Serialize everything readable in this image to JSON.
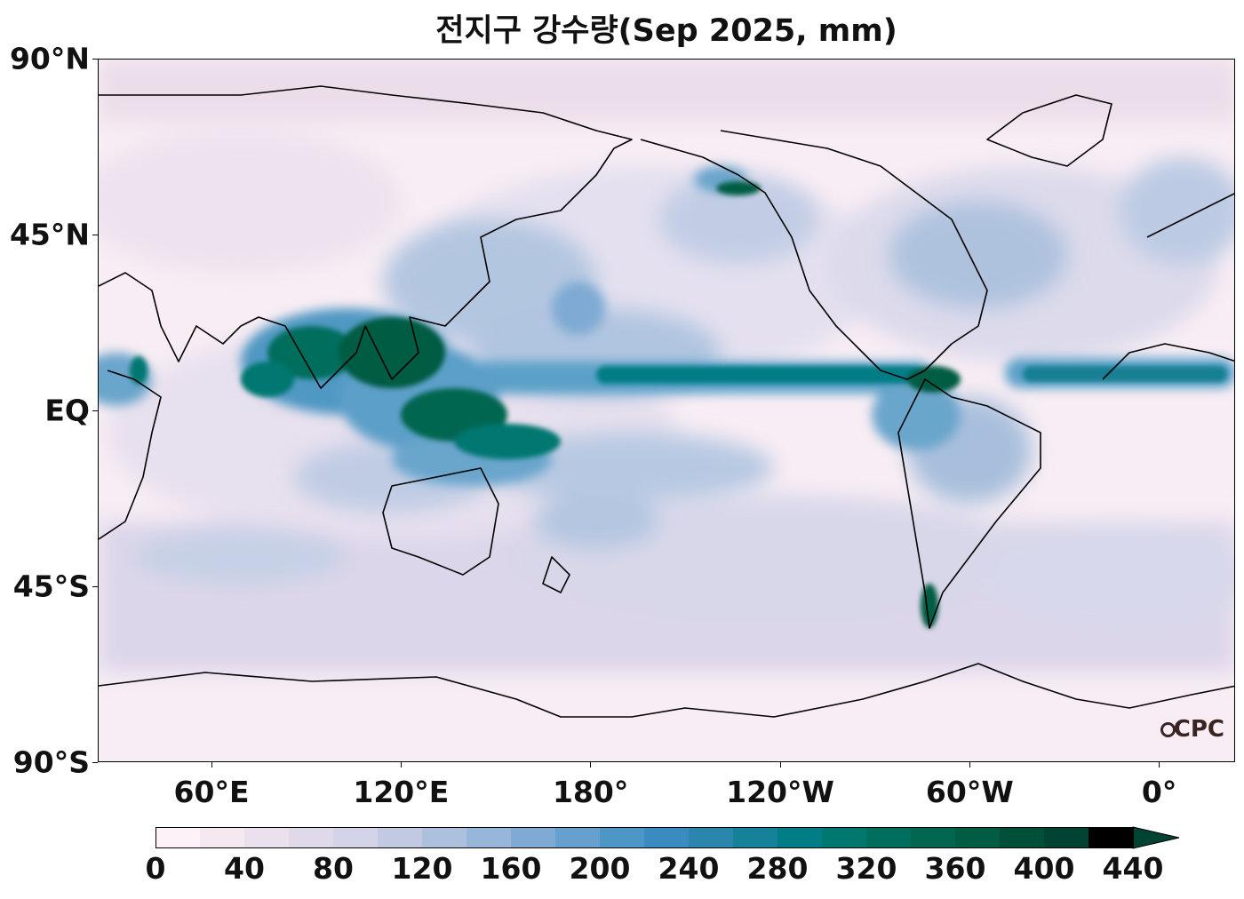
{
  "title": "전지구 강수량(Sep 2025, mm)",
  "logo_text": "CPC",
  "y_axis": {
    "ticks": [
      {
        "label": "90°N",
        "lat": 90
      },
      {
        "label": "45°N",
        "lat": 45
      },
      {
        "label": "EQ",
        "lat": 0
      },
      {
        "label": "45°S",
        "lat": -45
      },
      {
        "label": "90°S",
        "lat": -90
      }
    ]
  },
  "x_axis": {
    "ticks": [
      {
        "label": "60°E",
        "lon": 60
      },
      {
        "label": "120°E",
        "lon": 120
      },
      {
        "label": "180°",
        "lon": 180
      },
      {
        "label": "120°W",
        "lon": 240
      },
      {
        "label": "60°W",
        "lon": 300
      },
      {
        "label": "0°",
        "lon": 360
      }
    ]
  },
  "colorbar": {
    "min": 0,
    "max": 440,
    "step": 20,
    "extend": "max",
    "tick_labels": [
      "0",
      "40",
      "80",
      "120",
      "160",
      "200",
      "240",
      "280",
      "320",
      "360",
      "400",
      "440"
    ],
    "colors": [
      "#fdf2f7",
      "#f5e8f1",
      "#ebe0ee",
      "#dfd9ea",
      "#d3d4e7",
      "#c2cae3",
      "#adc0de",
      "#97b6da",
      "#80aad4",
      "#66a0ce",
      "#4d97c6",
      "#3a8bbf",
      "#2a86ad",
      "#168299",
      "#007d85",
      "#00776f",
      "#006e5d",
      "#00664f",
      "#005c43",
      "#004f39",
      "#004332"
    ]
  },
  "map": {
    "projection": "PlateCarree",
    "central_longitude": 180,
    "extent_lon": [
      24,
      384
    ],
    "extent_lat": [
      -90,
      90
    ],
    "variable": "precipitation",
    "units": "mm"
  }
}
